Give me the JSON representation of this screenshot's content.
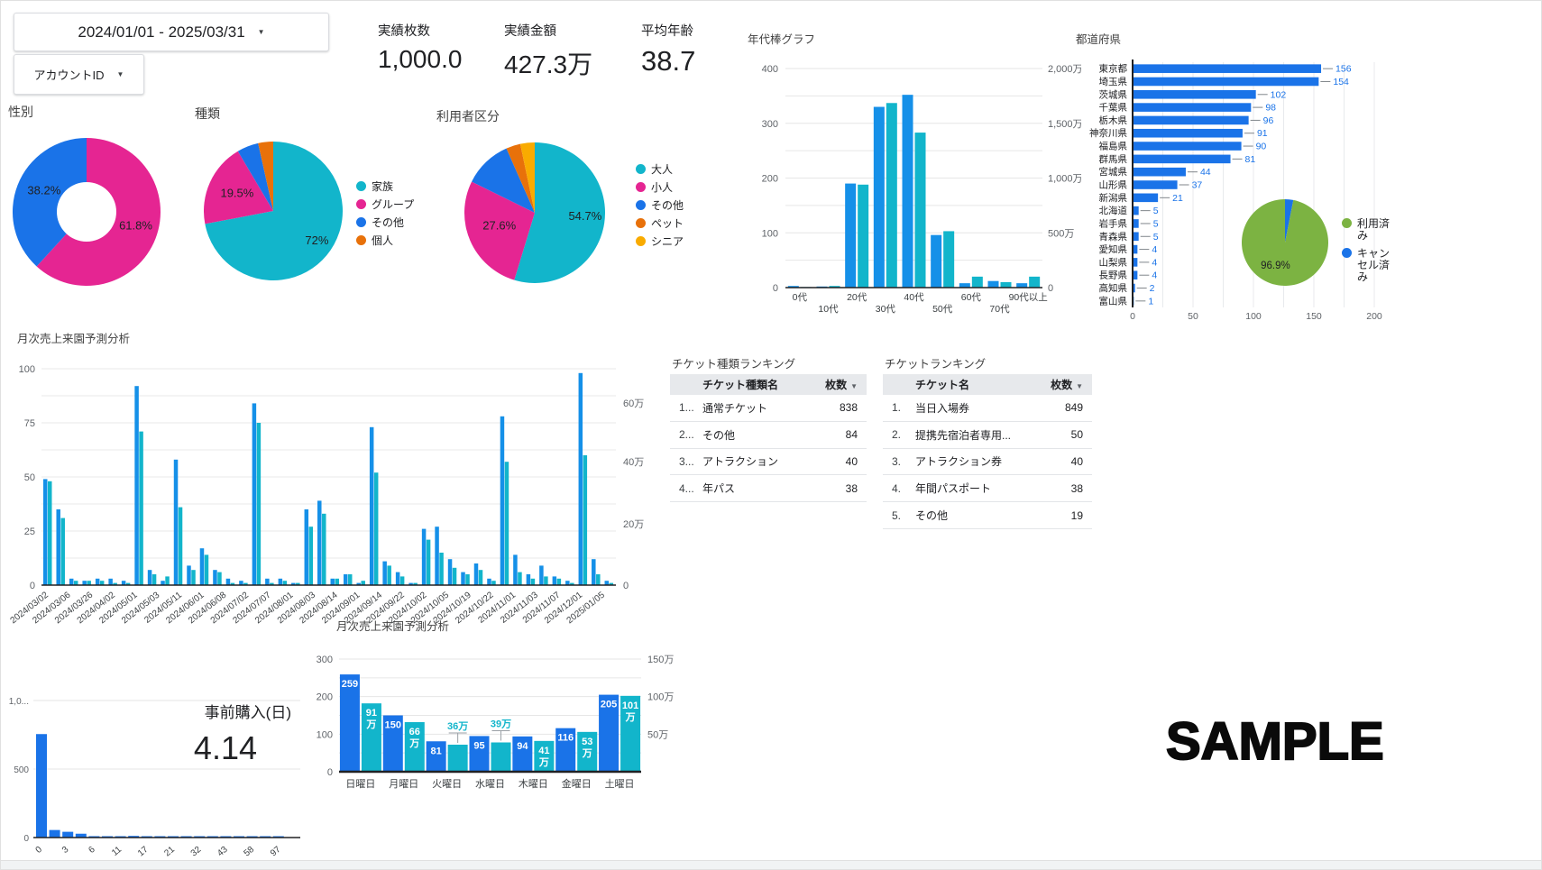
{
  "filter_bar": {
    "date_range": "2024/01/01 - 2025/03/31",
    "account_dropdown": "アカウントID"
  },
  "kpis": [
    {
      "label": "実績枚数",
      "value": "1,000.0"
    },
    {
      "label": "実績金額",
      "value": "427.3万"
    },
    {
      "label": "平均年齢",
      "value": "38.7"
    }
  ],
  "advance_purchase_kpi": {
    "label": "事前購入(日)",
    "value": "4.14"
  },
  "watermark": "SAMPLE",
  "colors": {
    "blue": "#1A73E8",
    "bar_blue": "#1590E8",
    "teal": "#12B5CB",
    "pink": "#E52592",
    "orange": "#E8710A",
    "amber": "#F9AB00",
    "green": "#7CB342",
    "axis_text": "#5F6368",
    "label_text": "#202124",
    "grid": "#E8E8E8",
    "value_blue": "#1A73E8"
  },
  "chart_data": [
    {
      "id": "gender_pie",
      "type": "pie",
      "title": "性別",
      "donut": true,
      "slices": [
        {
          "label": "",
          "value": 61.8,
          "color": "#E52592",
          "shown_label": "61.8%",
          "lx": 0.72,
          "ly": 0.62
        },
        {
          "label": "",
          "value": 38.2,
          "color": "#1A73E8",
          "shown_label": "38.2%",
          "lx": 0.1,
          "ly": 0.38
        }
      ]
    },
    {
      "id": "type_pie",
      "type": "pie",
      "title": "種類",
      "donut": false,
      "slices": [
        {
          "label": "家族",
          "value": 72.0,
          "color": "#12B5CB",
          "shown_label": "72%",
          "lx": 0.73,
          "ly": 0.74
        },
        {
          "label": "グループ",
          "value": 19.5,
          "color": "#E52592",
          "shown_label": "19.5%",
          "lx": 0.12,
          "ly": 0.4
        },
        {
          "label": "その他",
          "value": 5.0,
          "color": "#1A73E8",
          "shown_label": "",
          "lx": 0,
          "ly": 0
        },
        {
          "label": "個人",
          "value": 3.5,
          "color": "#E8710A",
          "shown_label": "",
          "lx": 0,
          "ly": 0
        }
      ],
      "legend": [
        "家族",
        "グループ",
        "その他",
        "個人"
      ]
    },
    {
      "id": "user_pie",
      "type": "pie",
      "title": "利用者区分",
      "donut": false,
      "slices": [
        {
          "label": "大人",
          "value": 54.7,
          "color": "#12B5CB",
          "shown_label": "54.7%",
          "lx": 0.74,
          "ly": 0.55
        },
        {
          "label": "小人",
          "value": 27.6,
          "color": "#E52592",
          "shown_label": "27.6%",
          "lx": 0.13,
          "ly": 0.62
        },
        {
          "label": "その他",
          "value": 11.1,
          "color": "#1A73E8",
          "shown_label": "",
          "lx": 0,
          "ly": 0
        },
        {
          "label": "ペット",
          "value": 3.3,
          "color": "#E8710A",
          "shown_label": "",
          "lx": 0,
          "ly": 0
        },
        {
          "label": "シニア",
          "value": 3.3,
          "color": "#F9AB00",
          "shown_label": "",
          "lx": 0,
          "ly": 0
        }
      ],
      "legend": [
        "大人",
        "小人",
        "その他",
        "ペット",
        "シニア"
      ]
    },
    {
      "id": "age_bars",
      "type": "bar",
      "title": "年代棒グラフ",
      "categories": [
        "0代",
        "10代",
        "20代",
        "30代",
        "40代",
        "50代",
        "60代",
        "70代",
        "90代以上"
      ],
      "series": [
        {
          "name": "枚数",
          "color": "#1590E8",
          "values": [
            3,
            2,
            190,
            330,
            352,
            96,
            8,
            12,
            8
          ]
        },
        {
          "name": "金額",
          "color": "#12B5CB",
          "values": [
            1,
            3,
            188,
            337,
            283,
            103,
            20,
            10,
            20
          ]
        }
      ],
      "ylim": [
        0,
        400
      ],
      "left_ticks": [
        "0",
        "100",
        "200",
        "300",
        "400"
      ],
      "right_ticks": [
        "0",
        "500万",
        "1,000万",
        "1,500万",
        "2,000万"
      ]
    },
    {
      "id": "pref_bars",
      "type": "bar",
      "title": "都道府県",
      "items": [
        [
          "東京都",
          156
        ],
        [
          "埼玉県",
          154
        ],
        [
          "茨城県",
          102
        ],
        [
          "千葉県",
          98
        ],
        [
          "栃木県",
          96
        ],
        [
          "神奈川県",
          91
        ],
        [
          "福島県",
          90
        ],
        [
          "群馬県",
          81
        ],
        [
          "宮城県",
          44
        ],
        [
          "山形県",
          37
        ],
        [
          "新潟県",
          21
        ],
        [
          "北海道",
          5
        ],
        [
          "岩手県",
          5
        ],
        [
          "青森県",
          5
        ],
        [
          "愛知県",
          4
        ],
        [
          "山梨県",
          4
        ],
        [
          "長野県",
          4
        ],
        [
          "高知県",
          2
        ],
        [
          "富山県",
          1
        ]
      ],
      "xlim": [
        0,
        200
      ],
      "x_ticks": [
        "0",
        "50",
        "100",
        "150",
        "200"
      ],
      "bar_color": "#1A73E8"
    },
    {
      "id": "status_pie",
      "type": "pie",
      "title": "",
      "slices": [
        {
          "label": "キャンセル済み",
          "value": 3.1,
          "color": "#1A73E8",
          "shown_label": "",
          "lx": 0,
          "ly": 0
        },
        {
          "label": "利用済み",
          "value": 96.9,
          "color": "#7CB342",
          "shown_label": "96.9%",
          "lx": 0.22,
          "ly": 0.8
        }
      ],
      "legend_lines": [
        [
          "利用済",
          "み"
        ],
        [
          "キャン",
          "セル済",
          "み"
        ]
      ],
      "legend_colors": [
        "#7CB342",
        "#1A73E8"
      ]
    },
    {
      "id": "daily_bars",
      "type": "bar",
      "title": "月次売上来園予測分析",
      "pairs": [
        [
          49,
          48
        ],
        [
          35,
          31
        ],
        [
          3,
          2
        ],
        [
          2,
          2
        ],
        [
          3,
          2
        ],
        [
          3,
          1
        ],
        [
          2,
          1
        ],
        [
          92,
          71
        ],
        [
          7,
          5
        ],
        [
          2,
          4
        ],
        [
          58,
          36
        ],
        [
          9,
          7
        ],
        [
          17,
          14
        ],
        [
          7,
          6
        ],
        [
          3,
          1
        ],
        [
          2,
          1
        ],
        [
          84,
          75
        ],
        [
          3,
          1
        ],
        [
          3,
          2
        ],
        [
          1,
          1
        ],
        [
          35,
          27
        ],
        [
          39,
          33
        ],
        [
          3,
          3
        ],
        [
          5,
          5
        ],
        [
          1,
          2
        ],
        [
          73,
          52
        ],
        [
          11,
          9
        ],
        [
          6,
          4
        ],
        [
          1,
          1
        ],
        [
          26,
          21
        ],
        [
          27,
          15
        ],
        [
          12,
          8
        ],
        [
          6,
          5
        ],
        [
          10,
          7
        ],
        [
          3,
          2
        ],
        [
          78,
          57
        ],
        [
          14,
          6
        ],
        [
          5,
          3
        ],
        [
          9,
          4
        ],
        [
          4,
          3
        ],
        [
          2,
          1
        ],
        [
          98,
          60
        ],
        [
          12,
          5
        ],
        [
          2,
          1
        ]
      ],
      "pair_colors": [
        "#1590E8",
        "#12B5CB"
      ],
      "ylim": [
        0,
        100
      ],
      "left_ticks": [
        "0",
        "25",
        "50",
        "75",
        "100"
      ],
      "right_ticks": [
        "0",
        "20万",
        "40万",
        "60万"
      ],
      "x_labels": [
        "2024/03/02",
        "2024/03/06",
        "2024/03/26",
        "2024/04/02",
        "2024/05/01",
        "2024/05/03",
        "2024/05/11",
        "2024/06/01",
        "2024/06/08",
        "2024/07/02",
        "2024/07/07",
        "2024/08/01",
        "2024/08/03",
        "2024/08/14",
        "2024/09/01",
        "2024/09/14",
        "2024/09/22",
        "2024/10/02",
        "2024/10/05",
        "2024/10/19",
        "2024/10/22",
        "2024/11/01",
        "2024/11/03",
        "2024/11/07",
        "2024/12/01",
        "2025/01/05"
      ]
    },
    {
      "id": "advance_hist",
      "type": "bar",
      "title": "",
      "values": [
        755,
        55,
        42,
        28,
        10,
        4,
        8,
        12,
        4,
        3,
        2,
        2,
        1,
        1,
        1,
        1,
        1,
        1,
        1,
        0
      ],
      "bar_color": "#1A73E8",
      "ylim": [
        0,
        1000
      ],
      "y_ticks": [
        "0",
        "500",
        "1,0..."
      ],
      "x_ticks": [
        "0",
        "3",
        "6",
        "11",
        "17",
        "21",
        "32",
        "43",
        "58",
        "97"
      ]
    },
    {
      "id": "weekday_bars",
      "type": "bar",
      "title": "月次売上来園予測分析",
      "categories": [
        "日曜日",
        "月曜日",
        "火曜日",
        "水曜日",
        "木曜日",
        "金曜日",
        "土曜日"
      ],
      "series": [
        {
          "name": "枚数",
          "color": "#1A73E8",
          "values": [
            259,
            150,
            81,
            95,
            94,
            116,
            205
          ]
        },
        {
          "name": "金額",
          "color": "#12B5CB",
          "values_man": [
            91,
            66,
            36,
            39,
            41,
            53,
            101
          ],
          "labels": [
            "91万",
            "66万",
            "36万",
            "39万",
            "41万",
            "53万",
            "101万"
          ]
        }
      ],
      "callout_indices": [
        2,
        3
      ],
      "ylim_left": [
        0,
        300
      ],
      "ylim_right_man": [
        0,
        150
      ],
      "left_ticks": [
        "0",
        "100",
        "200",
        "300"
      ],
      "right_ticks": [
        "50万",
        "100万",
        "150万"
      ]
    }
  ],
  "tables": [
    {
      "title": "チケット種類ランキング",
      "columns": [
        "チケット種類名",
        "枚数"
      ],
      "rows": [
        [
          "1...",
          "通常チケット",
          "838"
        ],
        [
          "2...",
          "その他",
          "84"
        ],
        [
          "3...",
          "アトラクション",
          "40"
        ],
        [
          "4...",
          "年パス",
          "38"
        ]
      ]
    },
    {
      "title": "チケットランキング",
      "columns": [
        "チケット名",
        "枚数"
      ],
      "rows": [
        [
          "1.",
          "当日入場券",
          "849"
        ],
        [
          "2.",
          "提携先宿泊者専用...",
          "50"
        ],
        [
          "3.",
          "アトラクション券",
          "40"
        ],
        [
          "4.",
          "年間パスポート",
          "38"
        ],
        [
          "5.",
          "その他",
          "19"
        ]
      ]
    }
  ]
}
